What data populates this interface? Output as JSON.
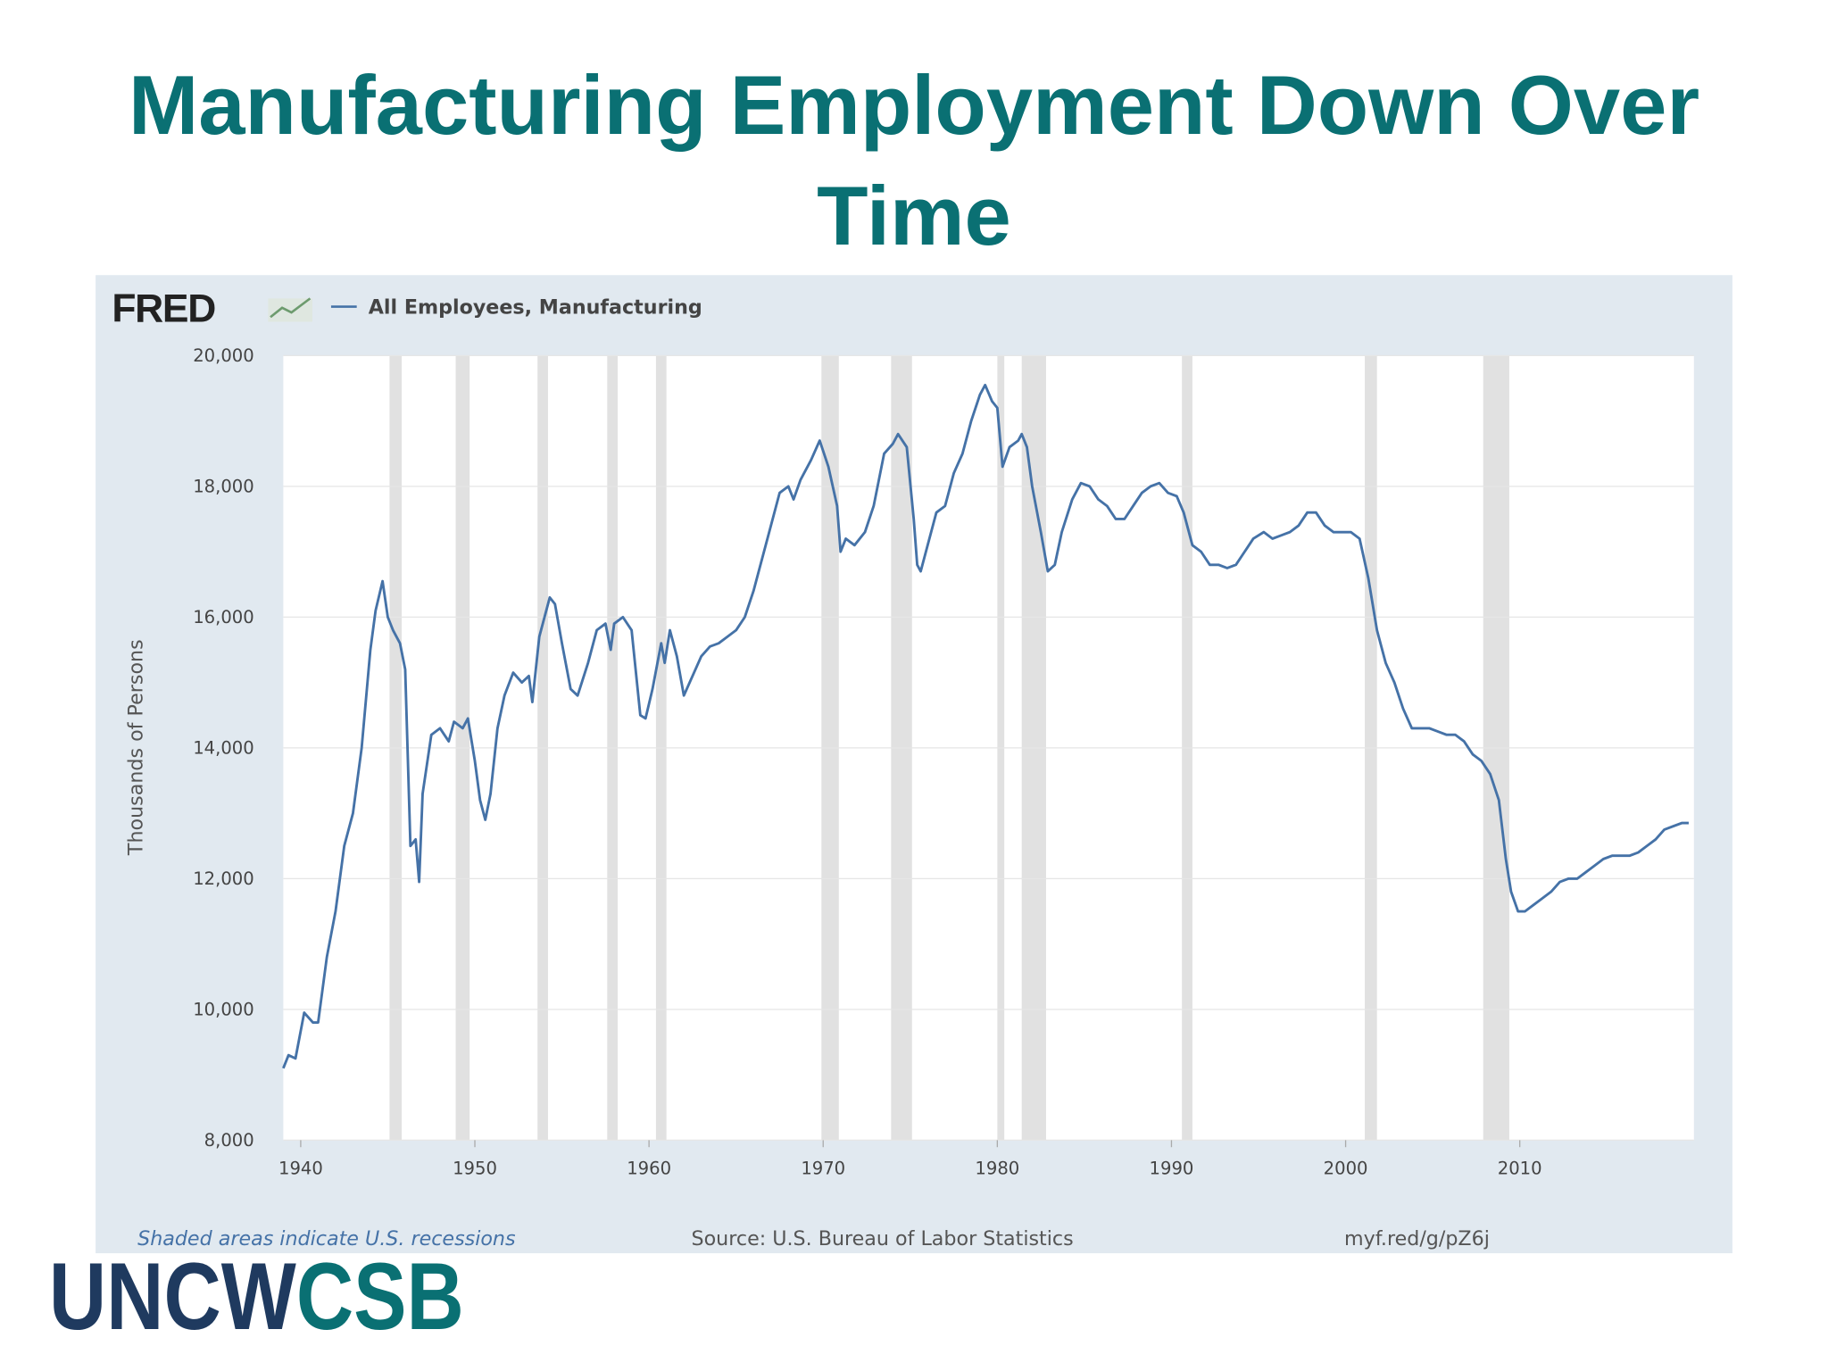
{
  "title": "Manufacturing Employment Down Over Time",
  "logo": [
    "UNCW",
    "CSB"
  ],
  "chart_data": {
    "type": "line",
    "brand": "FRED",
    "ylabel": "Thousands of Persons",
    "note": "Shaded areas indicate U.S. recessions",
    "source": "Source: U.S. Bureau of Labor Statistics",
    "link": "myf.red/g/pZ6j",
    "xlim": [
      1939,
      2020
    ],
    "xticks": [
      1940,
      1950,
      1960,
      1970,
      1980,
      1990,
      2000,
      2010
    ],
    "ylim": [
      8000,
      20000
    ],
    "yticks": [
      {
        "value": 8000,
        "label": "8,000"
      },
      {
        "value": 10000,
        "label": "10,000"
      },
      {
        "value": 12000,
        "label": "12,000"
      },
      {
        "value": 14000,
        "label": "14,000"
      },
      {
        "value": 16000,
        "label": "16,000"
      },
      {
        "value": 18000,
        "label": "18,000"
      },
      {
        "value": 20000,
        "label": "20,000"
      }
    ],
    "grid": true,
    "recession_color": "#e1e1e1",
    "recessions": [
      [
        1945.1,
        1945.8
      ],
      [
        1948.9,
        1949.7
      ],
      [
        1953.6,
        1954.2
      ],
      [
        1957.6,
        1958.2
      ],
      [
        1960.4,
        1961.0
      ],
      [
        1969.9,
        1970.9
      ],
      [
        1973.9,
        1975.1
      ],
      [
        1980.0,
        1980.4
      ],
      [
        1981.4,
        1982.8
      ],
      [
        1990.6,
        1991.2
      ],
      [
        2001.1,
        2001.8
      ],
      [
        2007.9,
        2009.4
      ]
    ],
    "x": [
      1939.0,
      1939.3,
      1939.7,
      1940.2,
      1940.7,
      1941.0,
      1941.5,
      1942.0,
      1942.5,
      1943.0,
      1943.5,
      1944.0,
      1944.3,
      1944.7,
      1945.0,
      1945.3,
      1945.7,
      1946.0,
      1946.3,
      1946.6,
      1946.8,
      1947.0,
      1947.5,
      1948.0,
      1948.5,
      1948.8,
      1949.3,
      1949.6,
      1950.0,
      1950.3,
      1950.6,
      1950.9,
      1951.3,
      1951.7,
      1952.2,
      1952.7,
      1953.1,
      1953.3,
      1953.7,
      1954.3,
      1954.6,
      1955.0,
      1955.5,
      1955.9,
      1956.5,
      1957.0,
      1957.5,
      1957.8,
      1958.0,
      1958.5,
      1959.0,
      1959.5,
      1959.8,
      1960.2,
      1960.7,
      1960.9,
      1961.2,
      1961.6,
      1962.0,
      1962.5,
      1963.0,
      1963.5,
      1964.0,
      1964.5,
      1965.0,
      1965.5,
      1966.0,
      1966.5,
      1967.0,
      1967.5,
      1968.0,
      1968.3,
      1968.7,
      1969.3,
      1969.8,
      1970.3,
      1970.8,
      1971.0,
      1971.3,
      1971.8,
      1972.4,
      1972.9,
      1973.5,
      1974.0,
      1974.3,
      1974.8,
      1975.2,
      1975.4,
      1975.6,
      1976.0,
      1976.5,
      1977.0,
      1977.5,
      1978.0,
      1978.5,
      1979.0,
      1979.3,
      1979.7,
      1980.0,
      1980.3,
      1980.7,
      1981.2,
      1981.4,
      1981.7,
      1982.0,
      1982.5,
      1982.9,
      1983.3,
      1983.7,
      1984.3,
      1984.8,
      1985.3,
      1985.8,
      1986.3,
      1986.8,
      1987.3,
      1987.8,
      1988.3,
      1988.8,
      1989.3,
      1989.8,
      1990.3,
      1990.7,
      1991.2,
      1991.7,
      1992.2,
      1992.7,
      1993.2,
      1993.7,
      1994.2,
      1994.7,
      1995.3,
      1995.8,
      1996.3,
      1996.8,
      1997.3,
      1997.8,
      1998.3,
      1998.8,
      1999.3,
      1999.8,
      2000.3,
      2000.8,
      2001.3,
      2001.8,
      2002.3,
      2002.8,
      2003.3,
      2003.8,
      2004.3,
      2004.8,
      2005.3,
      2005.8,
      2006.3,
      2006.8,
      2007.3,
      2007.8,
      2008.3,
      2008.8,
      2009.2,
      2009.5,
      2009.9,
      2010.3,
      2010.8,
      2011.3,
      2011.8,
      2012.3,
      2012.8,
      2013.3,
      2013.8,
      2014.3,
      2014.8,
      2015.3,
      2015.8,
      2016.3,
      2016.8,
      2017.3,
      2017.8,
      2018.3,
      2018.8,
      2019.3,
      2019.7
    ],
    "series": [
      {
        "name": "All Employees, Manufacturing",
        "color": "#4572a7",
        "values": [
          9100,
          9300,
          9250,
          9950,
          9800,
          9800,
          10800,
          11500,
          12500,
          13000,
          14000,
          15500,
          16100,
          16550,
          16000,
          15800,
          15600,
          15200,
          12500,
          12600,
          11950,
          13300,
          14200,
          14300,
          14100,
          14400,
          14300,
          14450,
          13800,
          13200,
          12900,
          13300,
          14300,
          14800,
          15150,
          15000,
          15100,
          14700,
          15700,
          16300,
          16200,
          15600,
          14900,
          14800,
          15300,
          15800,
          15900,
          15500,
          15900,
          16000,
          15800,
          14500,
          14450,
          14900,
          15600,
          15300,
          15800,
          15400,
          14800,
          15100,
          15400,
          15550,
          15600,
          15700,
          15800,
          16000,
          16400,
          16900,
          17400,
          17900,
          18000,
          17800,
          18100,
          18400,
          18700,
          18300,
          17700,
          17000,
          17200,
          17100,
          17300,
          17700,
          18500,
          18650,
          18800,
          18600,
          17500,
          16800,
          16700,
          17100,
          17600,
          17700,
          18200,
          18500,
          19000,
          19400,
          19550,
          19300,
          19200,
          18300,
          18600,
          18700,
          18800,
          18600,
          18000,
          17300,
          16700,
          16800,
          17300,
          17800,
          18050,
          18000,
          17800,
          17700,
          17500,
          17500,
          17700,
          17900,
          18000,
          18050,
          17900,
          17850,
          17600,
          17100,
          17000,
          16800,
          16800,
          16750,
          16800,
          17000,
          17200,
          17300,
          17200,
          17250,
          17300,
          17400,
          17600,
          17600,
          17400,
          17300,
          17300,
          17300,
          17200,
          16600,
          15800,
          15300,
          15000,
          14600,
          14300,
          14300,
          14300,
          14250,
          14200,
          14200,
          14100,
          13900,
          13800,
          13600,
          13200,
          12300,
          11800,
          11500,
          11500,
          11600,
          11700,
          11800,
          11950,
          12000,
          12000,
          12100,
          12200,
          12300,
          12350,
          12350,
          12350,
          12400,
          12500,
          12600,
          12750,
          12800,
          12850,
          12850
        ]
      }
    ]
  }
}
